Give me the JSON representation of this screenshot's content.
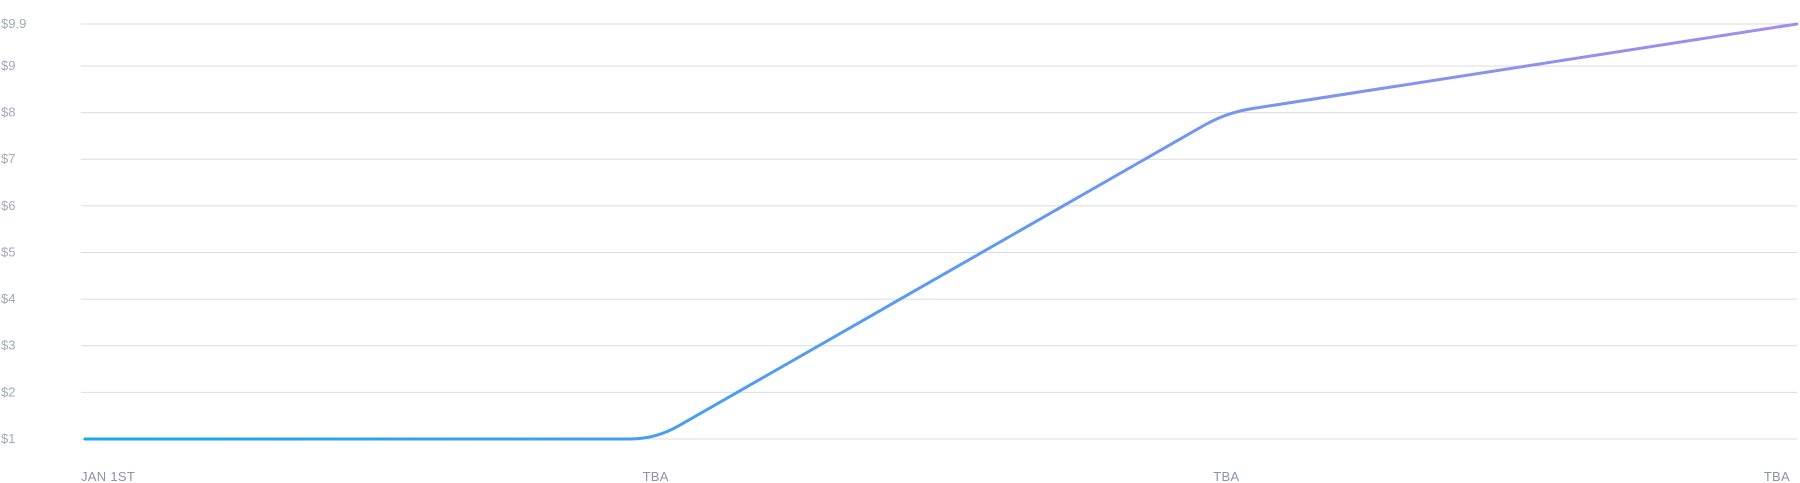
{
  "chart_data": {
    "type": "line",
    "title": "",
    "xlabel": "",
    "ylabel": "",
    "x_tick_labels": [
      "JAN 1ST",
      "TBA",
      "TBA",
      "TBA"
    ],
    "y_tick_values": [
      1,
      2,
      3,
      4,
      5,
      6,
      7,
      8,
      9,
      9.9
    ],
    "y_tick_labels": [
      "$1",
      "$2",
      "$3",
      "$4",
      "$5",
      "$6",
      "$7",
      "$8",
      "$9",
      "$9.9"
    ],
    "ylim": [
      1,
      9.9
    ],
    "grid": true,
    "legend": "none",
    "series": [
      {
        "points": [
          {
            "x": 0,
            "y": 1
          },
          {
            "x": 1,
            "y": 1
          },
          {
            "x": 2,
            "y": 8
          },
          {
            "x": 3,
            "y": 9.9
          }
        ]
      }
    ],
    "line_gradient": [
      "#16a8f2",
      "#a48cf0"
    ]
  }
}
